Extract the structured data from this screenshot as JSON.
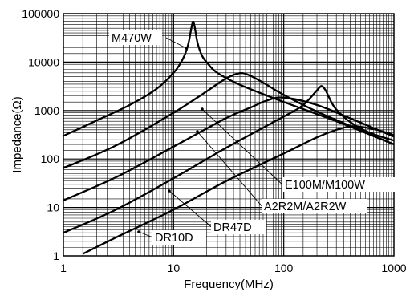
{
  "chart_data": {
    "type": "line",
    "title": "",
    "xlabel": "Frequency(MHz)",
    "ylabel": "Impedance(Ω)",
    "x_scale": "log",
    "y_scale": "log",
    "xlim": [
      1,
      1000
    ],
    "ylim": [
      1,
      100000
    ],
    "grid": true,
    "x_ticks": [
      "1",
      "10",
      "100",
      "1000"
    ],
    "y_ticks": [
      "1",
      "10",
      "100",
      "1000",
      "10000",
      "100000"
    ],
    "line_color": "#000000",
    "series": [
      {
        "name": "M470W",
        "x": [
          1,
          2,
          4,
          7,
          10,
          12,
          13.5,
          14.5,
          15,
          15.5,
          16.5,
          18,
          20,
          25,
          40,
          100,
          300,
          1000
        ],
        "y": [
          300,
          620,
          1300,
          2800,
          6000,
          11000,
          22000,
          50000,
          68000,
          55000,
          25000,
          14000,
          9800,
          6000,
          3400,
          1500,
          600,
          200
        ]
      },
      {
        "name": "E100M/M100W",
        "x": [
          1,
          3,
          10,
          20,
          30,
          40,
          50,
          70,
          100,
          200,
          500,
          1000
        ],
        "y": [
          65,
          190,
          900,
          2500,
          4600,
          5900,
          5200,
          3400,
          2100,
          950,
          390,
          200
        ]
      },
      {
        "name": "A2R2M/A2R2W",
        "x": [
          1,
          3,
          10,
          30,
          50,
          70,
          100,
          200,
          500,
          1000
        ],
        "y": [
          14,
          42,
          180,
          700,
          1150,
          1600,
          1850,
          1300,
          560,
          290
        ]
      },
      {
        "name": "DR47D",
        "x": [
          1,
          3,
          10,
          30,
          100,
          150,
          200,
          220,
          240,
          270,
          300,
          400,
          600,
          1000
        ],
        "y": [
          3,
          9,
          40,
          170,
          750,
          1300,
          2600,
          3200,
          2600,
          1500,
          1050,
          580,
          350,
          240
        ]
      },
      {
        "name": "DR10D",
        "x": [
          1.5,
          3,
          10,
          30,
          100,
          200,
          300,
          400,
          500,
          700,
          1000
        ],
        "y": [
          1.1,
          2.4,
          9,
          35,
          130,
          280,
          400,
          470,
          460,
          400,
          310
        ]
      }
    ]
  }
}
